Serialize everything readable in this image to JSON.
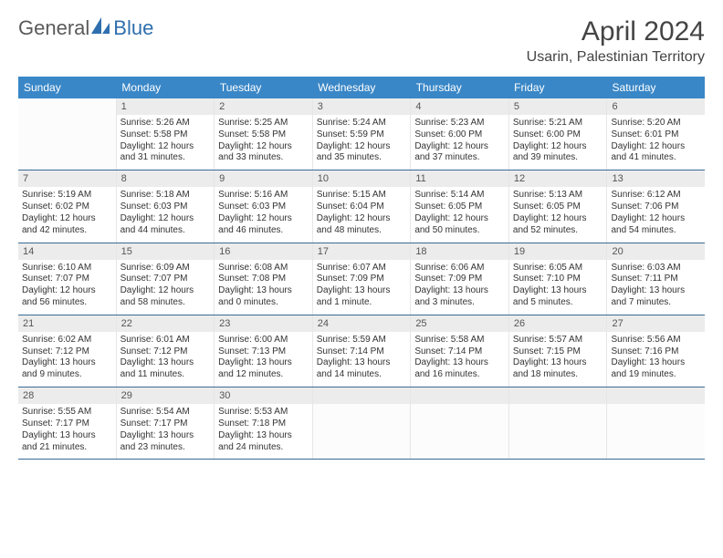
{
  "brand": {
    "name_left": "General",
    "name_right": "Blue"
  },
  "title": {
    "month": "April 2024",
    "location": "Usarin, Palestinian Territory"
  },
  "colors": {
    "header_bg": "#3a87c7",
    "header_text": "#ffffff",
    "row_border": "#3a6a94",
    "daynum_bg": "#ececec",
    "text": "#333333",
    "logo_blue": "#2f6fae"
  },
  "weekdays": [
    "Sunday",
    "Monday",
    "Tuesday",
    "Wednesday",
    "Thursday",
    "Friday",
    "Saturday"
  ],
  "weeks": [
    [
      {
        "day": "",
        "sunrise": "",
        "sunset": "",
        "daylight": ""
      },
      {
        "day": "1",
        "sunrise": "Sunrise: 5:26 AM",
        "sunset": "Sunset: 5:58 PM",
        "daylight": "Daylight: 12 hours and 31 minutes."
      },
      {
        "day": "2",
        "sunrise": "Sunrise: 5:25 AM",
        "sunset": "Sunset: 5:58 PM",
        "daylight": "Daylight: 12 hours and 33 minutes."
      },
      {
        "day": "3",
        "sunrise": "Sunrise: 5:24 AM",
        "sunset": "Sunset: 5:59 PM",
        "daylight": "Daylight: 12 hours and 35 minutes."
      },
      {
        "day": "4",
        "sunrise": "Sunrise: 5:23 AM",
        "sunset": "Sunset: 6:00 PM",
        "daylight": "Daylight: 12 hours and 37 minutes."
      },
      {
        "day": "5",
        "sunrise": "Sunrise: 5:21 AM",
        "sunset": "Sunset: 6:00 PM",
        "daylight": "Daylight: 12 hours and 39 minutes."
      },
      {
        "day": "6",
        "sunrise": "Sunrise: 5:20 AM",
        "sunset": "Sunset: 6:01 PM",
        "daylight": "Daylight: 12 hours and 41 minutes."
      }
    ],
    [
      {
        "day": "7",
        "sunrise": "Sunrise: 5:19 AM",
        "sunset": "Sunset: 6:02 PM",
        "daylight": "Daylight: 12 hours and 42 minutes."
      },
      {
        "day": "8",
        "sunrise": "Sunrise: 5:18 AM",
        "sunset": "Sunset: 6:03 PM",
        "daylight": "Daylight: 12 hours and 44 minutes."
      },
      {
        "day": "9",
        "sunrise": "Sunrise: 5:16 AM",
        "sunset": "Sunset: 6:03 PM",
        "daylight": "Daylight: 12 hours and 46 minutes."
      },
      {
        "day": "10",
        "sunrise": "Sunrise: 5:15 AM",
        "sunset": "Sunset: 6:04 PM",
        "daylight": "Daylight: 12 hours and 48 minutes."
      },
      {
        "day": "11",
        "sunrise": "Sunrise: 5:14 AM",
        "sunset": "Sunset: 6:05 PM",
        "daylight": "Daylight: 12 hours and 50 minutes."
      },
      {
        "day": "12",
        "sunrise": "Sunrise: 5:13 AM",
        "sunset": "Sunset: 6:05 PM",
        "daylight": "Daylight: 12 hours and 52 minutes."
      },
      {
        "day": "13",
        "sunrise": "Sunrise: 6:12 AM",
        "sunset": "Sunset: 7:06 PM",
        "daylight": "Daylight: 12 hours and 54 minutes."
      }
    ],
    [
      {
        "day": "14",
        "sunrise": "Sunrise: 6:10 AM",
        "sunset": "Sunset: 7:07 PM",
        "daylight": "Daylight: 12 hours and 56 minutes."
      },
      {
        "day": "15",
        "sunrise": "Sunrise: 6:09 AM",
        "sunset": "Sunset: 7:07 PM",
        "daylight": "Daylight: 12 hours and 58 minutes."
      },
      {
        "day": "16",
        "sunrise": "Sunrise: 6:08 AM",
        "sunset": "Sunset: 7:08 PM",
        "daylight": "Daylight: 13 hours and 0 minutes."
      },
      {
        "day": "17",
        "sunrise": "Sunrise: 6:07 AM",
        "sunset": "Sunset: 7:09 PM",
        "daylight": "Daylight: 13 hours and 1 minute."
      },
      {
        "day": "18",
        "sunrise": "Sunrise: 6:06 AM",
        "sunset": "Sunset: 7:09 PM",
        "daylight": "Daylight: 13 hours and 3 minutes."
      },
      {
        "day": "19",
        "sunrise": "Sunrise: 6:05 AM",
        "sunset": "Sunset: 7:10 PM",
        "daylight": "Daylight: 13 hours and 5 minutes."
      },
      {
        "day": "20",
        "sunrise": "Sunrise: 6:03 AM",
        "sunset": "Sunset: 7:11 PM",
        "daylight": "Daylight: 13 hours and 7 minutes."
      }
    ],
    [
      {
        "day": "21",
        "sunrise": "Sunrise: 6:02 AM",
        "sunset": "Sunset: 7:12 PM",
        "daylight": "Daylight: 13 hours and 9 minutes."
      },
      {
        "day": "22",
        "sunrise": "Sunrise: 6:01 AM",
        "sunset": "Sunset: 7:12 PM",
        "daylight": "Daylight: 13 hours and 11 minutes."
      },
      {
        "day": "23",
        "sunrise": "Sunrise: 6:00 AM",
        "sunset": "Sunset: 7:13 PM",
        "daylight": "Daylight: 13 hours and 12 minutes."
      },
      {
        "day": "24",
        "sunrise": "Sunrise: 5:59 AM",
        "sunset": "Sunset: 7:14 PM",
        "daylight": "Daylight: 13 hours and 14 minutes."
      },
      {
        "day": "25",
        "sunrise": "Sunrise: 5:58 AM",
        "sunset": "Sunset: 7:14 PM",
        "daylight": "Daylight: 13 hours and 16 minutes."
      },
      {
        "day": "26",
        "sunrise": "Sunrise: 5:57 AM",
        "sunset": "Sunset: 7:15 PM",
        "daylight": "Daylight: 13 hours and 18 minutes."
      },
      {
        "day": "27",
        "sunrise": "Sunrise: 5:56 AM",
        "sunset": "Sunset: 7:16 PM",
        "daylight": "Daylight: 13 hours and 19 minutes."
      }
    ],
    [
      {
        "day": "28",
        "sunrise": "Sunrise: 5:55 AM",
        "sunset": "Sunset: 7:17 PM",
        "daylight": "Daylight: 13 hours and 21 minutes."
      },
      {
        "day": "29",
        "sunrise": "Sunrise: 5:54 AM",
        "sunset": "Sunset: 7:17 PM",
        "daylight": "Daylight: 13 hours and 23 minutes."
      },
      {
        "day": "30",
        "sunrise": "Sunrise: 5:53 AM",
        "sunset": "Sunset: 7:18 PM",
        "daylight": "Daylight: 13 hours and 24 minutes."
      },
      {
        "day": "",
        "sunrise": "",
        "sunset": "",
        "daylight": ""
      },
      {
        "day": "",
        "sunrise": "",
        "sunset": "",
        "daylight": ""
      },
      {
        "day": "",
        "sunrise": "",
        "sunset": "",
        "daylight": ""
      },
      {
        "day": "",
        "sunrise": "",
        "sunset": "",
        "daylight": ""
      }
    ]
  ]
}
